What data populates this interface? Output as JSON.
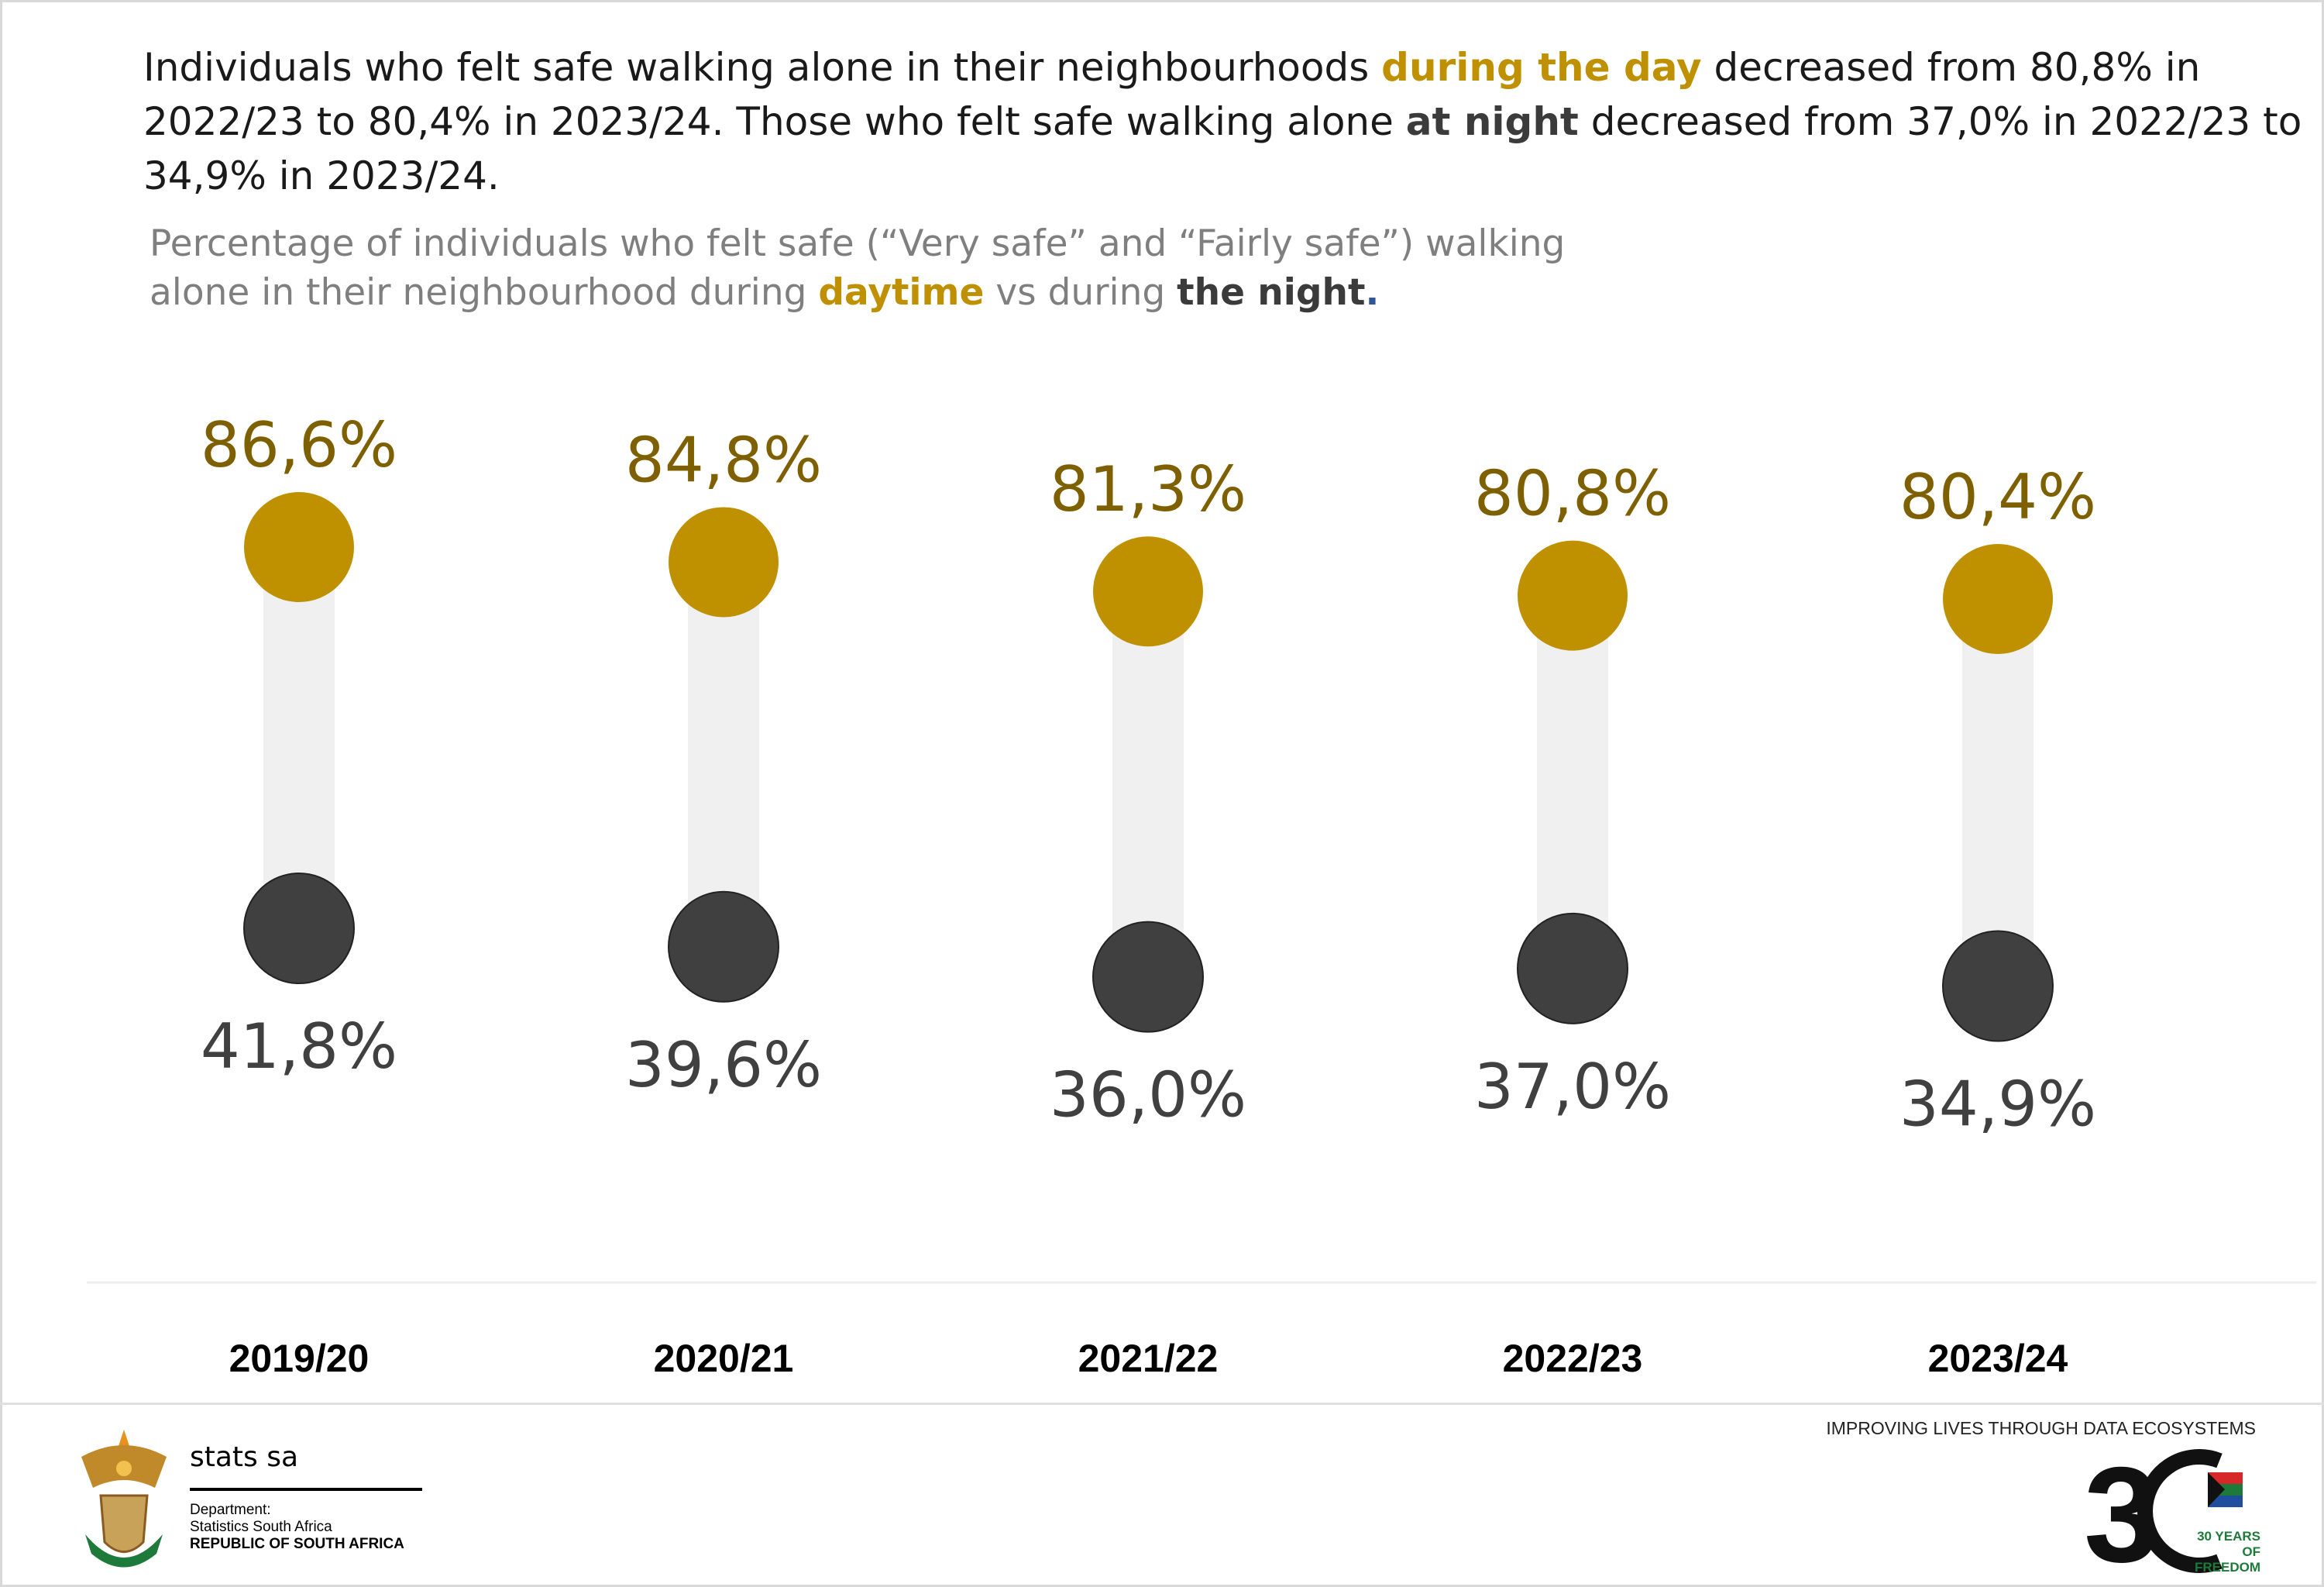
{
  "headline": {
    "part1": "Individuals who felt safe walking alone in their neighbourhoods ",
    "day_emph": "during the day",
    "part2": " decreased from 80,8% in 2022/23 to 80,4% in 2023/24. Those who felt safe walking alone ",
    "night_emph": "at night",
    "part3": " decreased from 37,0% in 2022/23 to 34,9% in 2023/24."
  },
  "subtitle": {
    "part1": "Percentage of individuals who felt safe (“Very safe” and “Fairly safe”) walking alone in their neighbourhood during ",
    "day_emph": "daytime",
    "part2": " vs during ",
    "night_emph": "the night",
    "period": "."
  },
  "chart_data": {
    "type": "dumbbell",
    "categories": [
      "2019/20",
      "2020/21",
      "2021/22",
      "2022/23",
      "2023/24"
    ],
    "series": [
      {
        "name": "daytime",
        "values": [
          86.6,
          84.8,
          81.3,
          80.8,
          80.4
        ],
        "labels": [
          "86,6%",
          "84,8%",
          "81,3%",
          "80,8%",
          "80,4%"
        ],
        "color": "#bf9000",
        "label_color": "#7f6000"
      },
      {
        "name": "the night",
        "values": [
          41.8,
          39.6,
          36.0,
          37.0,
          34.9
        ],
        "labels": [
          "41,8%",
          "39,6%",
          "36,0%",
          "37,0%",
          "34,9%"
        ],
        "color": "#404040",
        "label_color": "#404040"
      }
    ],
    "connector_color": "#f0f0f0",
    "grid": false
  },
  "footer": {
    "stats_name": "stats sa",
    "department": "Department:",
    "dept_name": "Statistics South Africa",
    "republic": "REPUBLIC OF SOUTH AFRICA",
    "tagline": "IMPROVING LIVES THROUGH DATA ECOSYSTEMS",
    "anniversary_logo_text": "30 YEARS OF FREEDOM"
  }
}
